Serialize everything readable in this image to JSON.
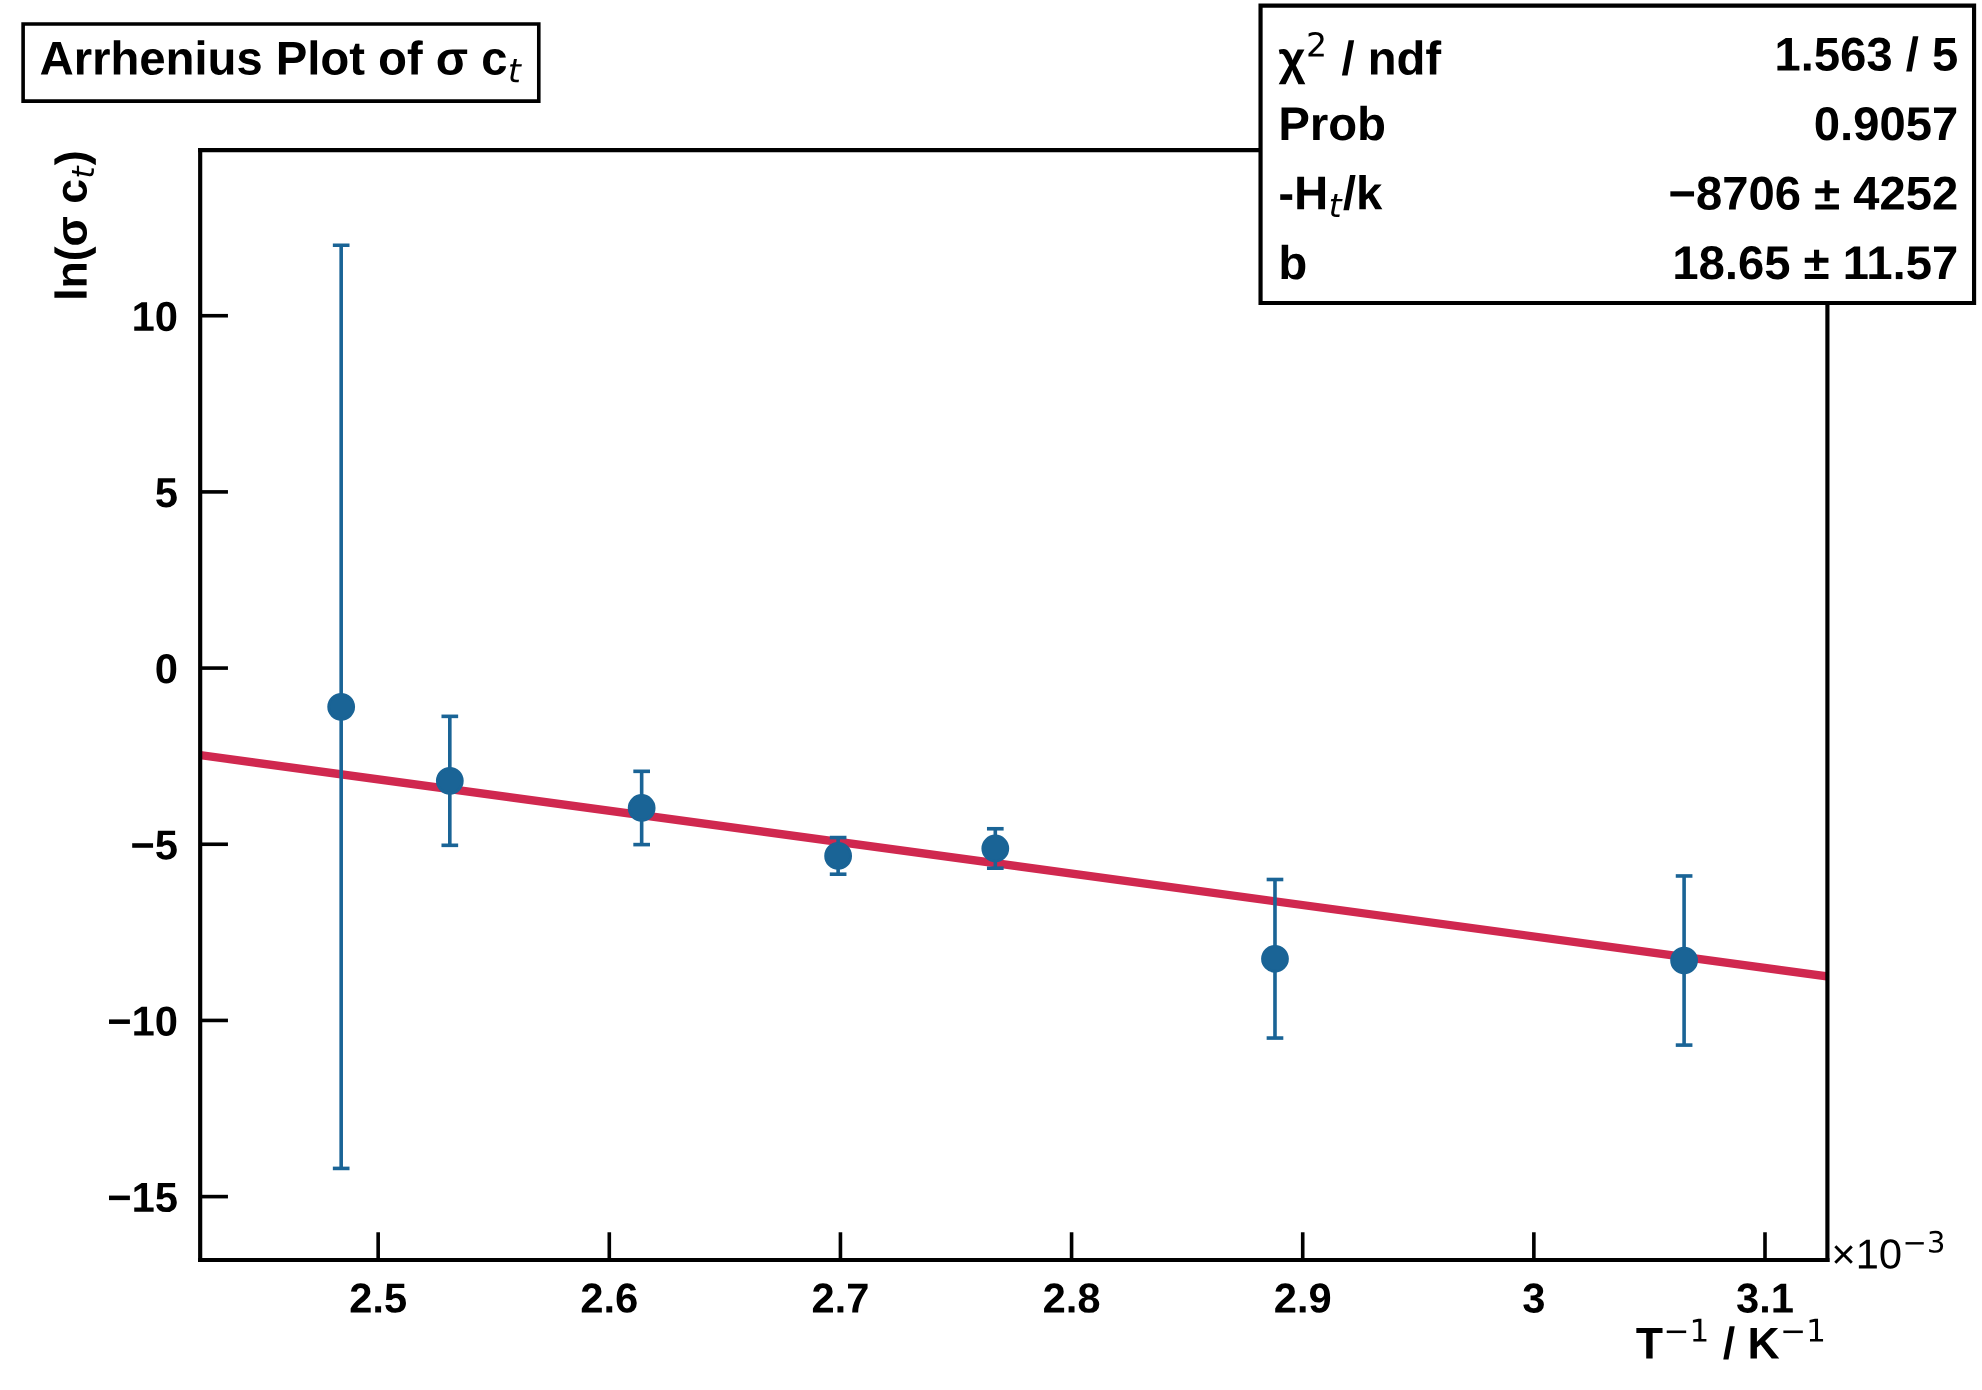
{
  "chart_data": {
    "type": "scatter",
    "title": "Arrhenius Plot of σ c$_{t}$",
    "xlabel": "T$^{−1}$ / K$^{−1}$",
    "ylabel": "ln(σ c$_{t}$)",
    "x": [
      2.484,
      2.531,
      2.614,
      2.699,
      2.767,
      2.888,
      3.065
    ],
    "series": [
      {
        "color": "#1a6496",
        "marker": "circle",
        "values": [
          -1.1,
          -3.2,
          -3.97,
          -5.33,
          -5.12,
          -8.25,
          -8.3
        ],
        "errors": [
          13.1,
          1.83,
          1.04,
          0.52,
          0.56,
          2.25,
          2.4
        ]
      },
      {
        "type": "line",
        "color": "#d0284f",
        "line_style": "solid",
        "marker": "none",
        "x": [
          2.423,
          3.127
        ],
        "values": [
          -2.47,
          -8.75
        ]
      }
    ],
    "xlim": [
      2.423,
      3.127
    ],
    "xticks": [
      2.5,
      2.6,
      2.7,
      2.8,
      2.9,
      3,
      3.1
    ],
    "ylim": [
      -16.8,
      14.7
    ],
    "yticks": [
      -15,
      -10,
      -5,
      0,
      5,
      10
    ],
    "grid": false,
    "annotations": [
      "χ$^{2}$ / ndf",
      "1.563 / 5",
      "Prob",
      "0.9057",
      "-H$_{t}$/k",
      "−8706 ± 4252",
      "b",
      "18.65 ± 11.57",
      "×10$^{−3}$"
    ]
  }
}
